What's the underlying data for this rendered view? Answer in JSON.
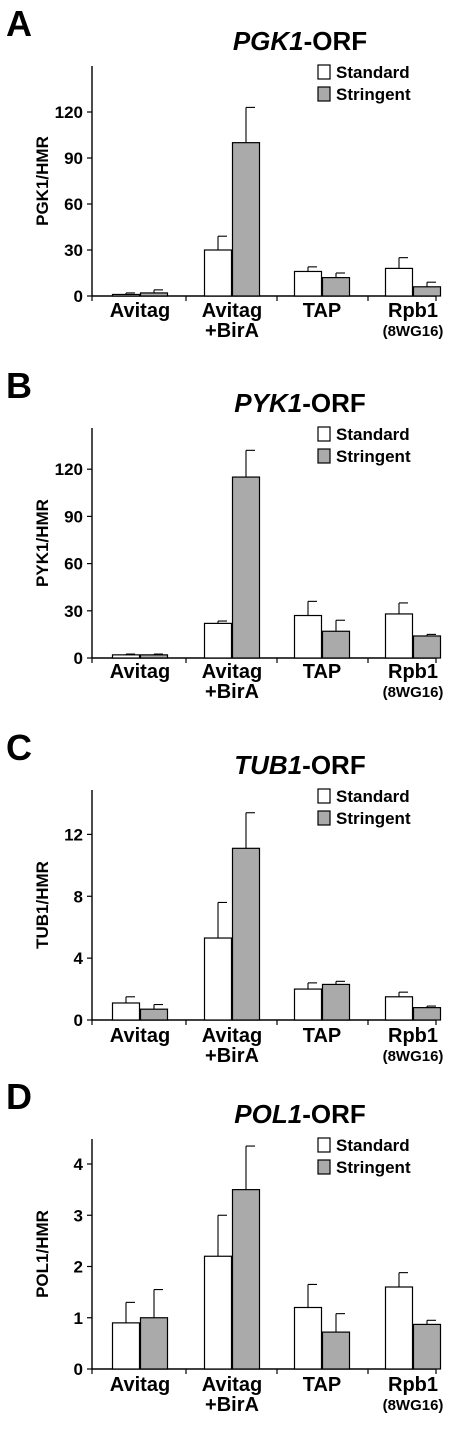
{
  "colors": {
    "standard": "#ffffff",
    "stringent": "#aaaaaa",
    "stroke": "#000000"
  },
  "chart_data": [
    {
      "panel": "A",
      "type": "bar",
      "title_gene": "PGK1",
      "title_suffix": "-ORF",
      "ylabel": "PGK1/HMR",
      "categories": [
        {
          "line1": "Avitag",
          "line2": ""
        },
        {
          "line1": "Avitag",
          "line2": "+BirA"
        },
        {
          "line1": "TAP",
          "line2": ""
        },
        {
          "line1": "Rpb1",
          "line2": "(8WG16)"
        }
      ],
      "ylim": [
        0,
        150
      ],
      "yticks": [
        0,
        30,
        60,
        90,
        120
      ],
      "legend_position": "top-right",
      "series": [
        {
          "name": "Standard",
          "values": [
            1,
            30,
            16,
            18
          ],
          "errors": [
            1,
            9,
            3,
            7
          ]
        },
        {
          "name": "Stringent",
          "values": [
            2,
            100,
            12,
            6
          ],
          "errors": [
            2,
            23,
            3,
            3
          ]
        }
      ]
    },
    {
      "panel": "B",
      "type": "bar",
      "title_gene": "PYK1",
      "title_suffix": "-ORF",
      "ylabel": "PYK1/HMR",
      "categories": [
        {
          "line1": "Avitag",
          "line2": ""
        },
        {
          "line1": "Avitag",
          "line2": "+BirA"
        },
        {
          "line1": "TAP",
          "line2": ""
        },
        {
          "line1": "Rpb1",
          "line2": "(8WG16)"
        }
      ],
      "ylim": [
        0,
        150
      ],
      "yticks": [
        0,
        30,
        60,
        90,
        120
      ],
      "legend_position": "top-right",
      "series": [
        {
          "name": "Standard",
          "values": [
            2,
            22,
            27,
            28
          ],
          "errors": [
            0.5,
            1.5,
            9,
            7
          ]
        },
        {
          "name": "Stringent",
          "values": [
            2,
            115,
            17,
            14
          ],
          "errors": [
            0.5,
            17,
            7,
            1
          ]
        }
      ]
    },
    {
      "panel": "C",
      "type": "bar",
      "title_gene": "TUB1",
      "title_suffix": "-ORF",
      "ylabel": "TUB1/HMR",
      "categories": [
        {
          "line1": "Avitag",
          "line2": ""
        },
        {
          "line1": "Avitag",
          "line2": "+BirA"
        },
        {
          "line1": "TAP",
          "line2": ""
        },
        {
          "line1": "Rpb1",
          "line2": "(8WG16)"
        }
      ],
      "ylim": [
        0,
        15
      ],
      "yticks": [
        0,
        4,
        8,
        12
      ],
      "legend_position": "top-right",
      "series": [
        {
          "name": "Standard",
          "values": [
            1.1,
            5.3,
            2.0,
            1.5
          ],
          "errors": [
            0.4,
            2.3,
            0.4,
            0.3
          ]
        },
        {
          "name": "Stringent",
          "values": [
            0.7,
            11.1,
            2.3,
            0.8
          ],
          "errors": [
            0.3,
            2.3,
            0.2,
            0.1
          ]
        }
      ]
    },
    {
      "panel": "D",
      "type": "bar",
      "title_gene": "POL1",
      "title_suffix": "-ORF",
      "ylabel": "POL1/HMR",
      "categories": [
        {
          "line1": "Avitag",
          "line2": ""
        },
        {
          "line1": "Avitag",
          "line2": "+BirA"
        },
        {
          "line1": "TAP",
          "line2": ""
        },
        {
          "line1": "Rpb1",
          "line2": "(8WG16)"
        }
      ],
      "ylim": [
        0,
        4.8
      ],
      "yticks": [
        0,
        1,
        2,
        3,
        4
      ],
      "legend_position": "top-right",
      "series": [
        {
          "name": "Standard",
          "values": [
            0.9,
            2.2,
            1.2,
            1.6
          ],
          "errors": [
            0.4,
            0.8,
            0.45,
            0.28
          ]
        },
        {
          "name": "Stringent",
          "values": [
            1.0,
            3.5,
            0.72,
            0.87
          ],
          "errors": [
            0.55,
            0.85,
            0.36,
            0.08
          ]
        }
      ]
    }
  ]
}
